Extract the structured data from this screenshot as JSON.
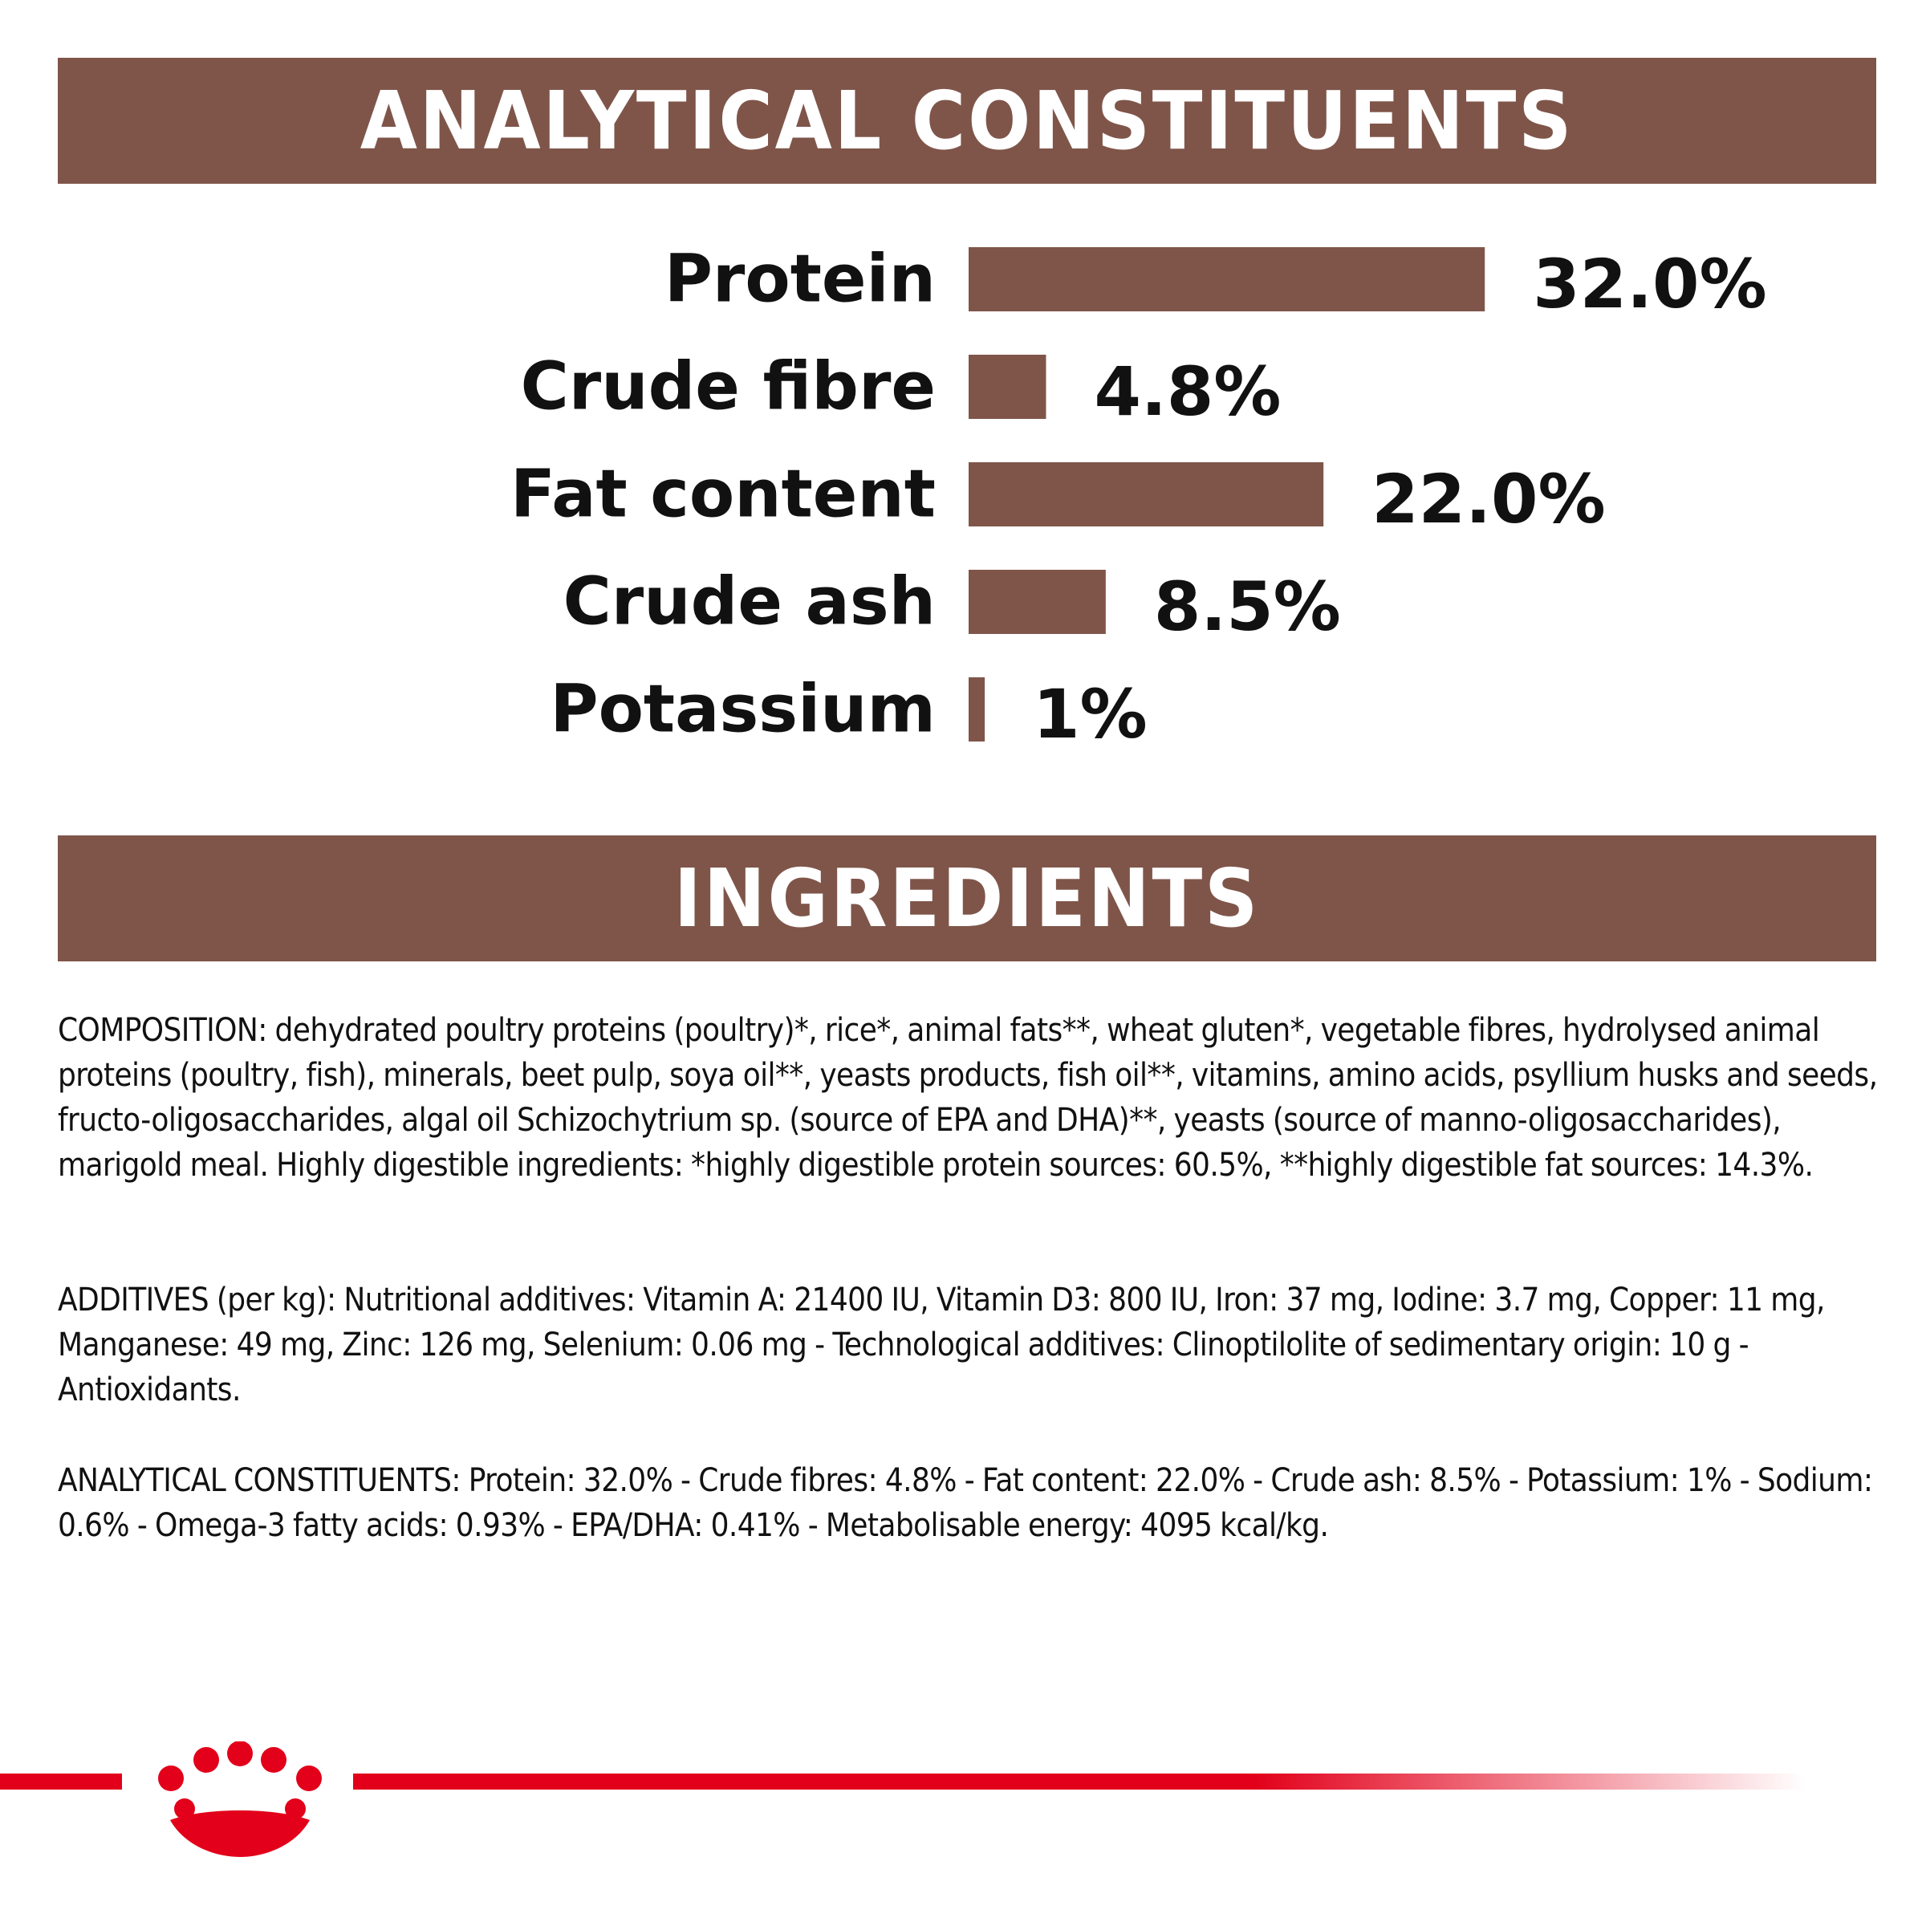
{
  "banners": {
    "analytical": "ANALYTICAL CONSTITUENTS",
    "ingredients": "INGREDIENTS"
  },
  "chart_data": {
    "type": "bar",
    "orientation": "horizontal",
    "categories": [
      "Protein",
      "Crude fibre",
      "Fat content",
      "Crude ash",
      "Potassium"
    ],
    "values": [
      32.0,
      4.8,
      22.0,
      8.5,
      1
    ],
    "value_labels": [
      "32.0%",
      "4.8%",
      "22.0%",
      "8.5%",
      "1%"
    ],
    "unit": "%",
    "grid": false,
    "bar_color": "#7f554a"
  },
  "ingredients": {
    "composition": "COMPOSITION: dehydrated poultry proteins (poultry)*, rice*, animal fats**, wheat gluten*, vegetable fibres, hydrolysed animal proteins (poultry, fish), minerals, beet pulp, soya oil**, yeasts products, fish oil**, vitamins, amino acids, psyllium husks and seeds, fructo-oligosaccharides, algal oil Schizochytrium sp. (source of EPA and DHA)**, yeasts (source of manno-oligosaccharides), marigold meal. Highly digestible ingredients: *highly digestible protein sources: 60.5%, **highly digestible fat sources: 14.3%.",
    "additives": "ADDITIVES (per kg): Nutritional additives: Vitamin A: 21400 IU, Vitamin D3: 800 IU, Iron: 37 mg, Iodine: 3.7 mg, Copper: 11 mg, Manganese: 49 mg, Zinc: 126 mg, Selenium: 0.06 mg - Technological additives: Clinoptilolite of sedimentary origin: 10 g - Antioxidants.",
    "analytical": "ANALYTICAL CONSTITUENTS: Protein: 32.0% - Crude fibres: 4.8% - Fat content: 22.0% - Crude ash: 8.5% - Potassium: 1% - Sodium: 0.6% - Omega-3 fatty acids: 0.93% - EPA/DHA: 0.41% - Metabolisable energy: 4095 kcal/kg."
  },
  "colors": {
    "brown": "#7f554a",
    "brand_red": "#e2001a"
  },
  "logo": {
    "icon": "royal-canin-crown-icon"
  }
}
